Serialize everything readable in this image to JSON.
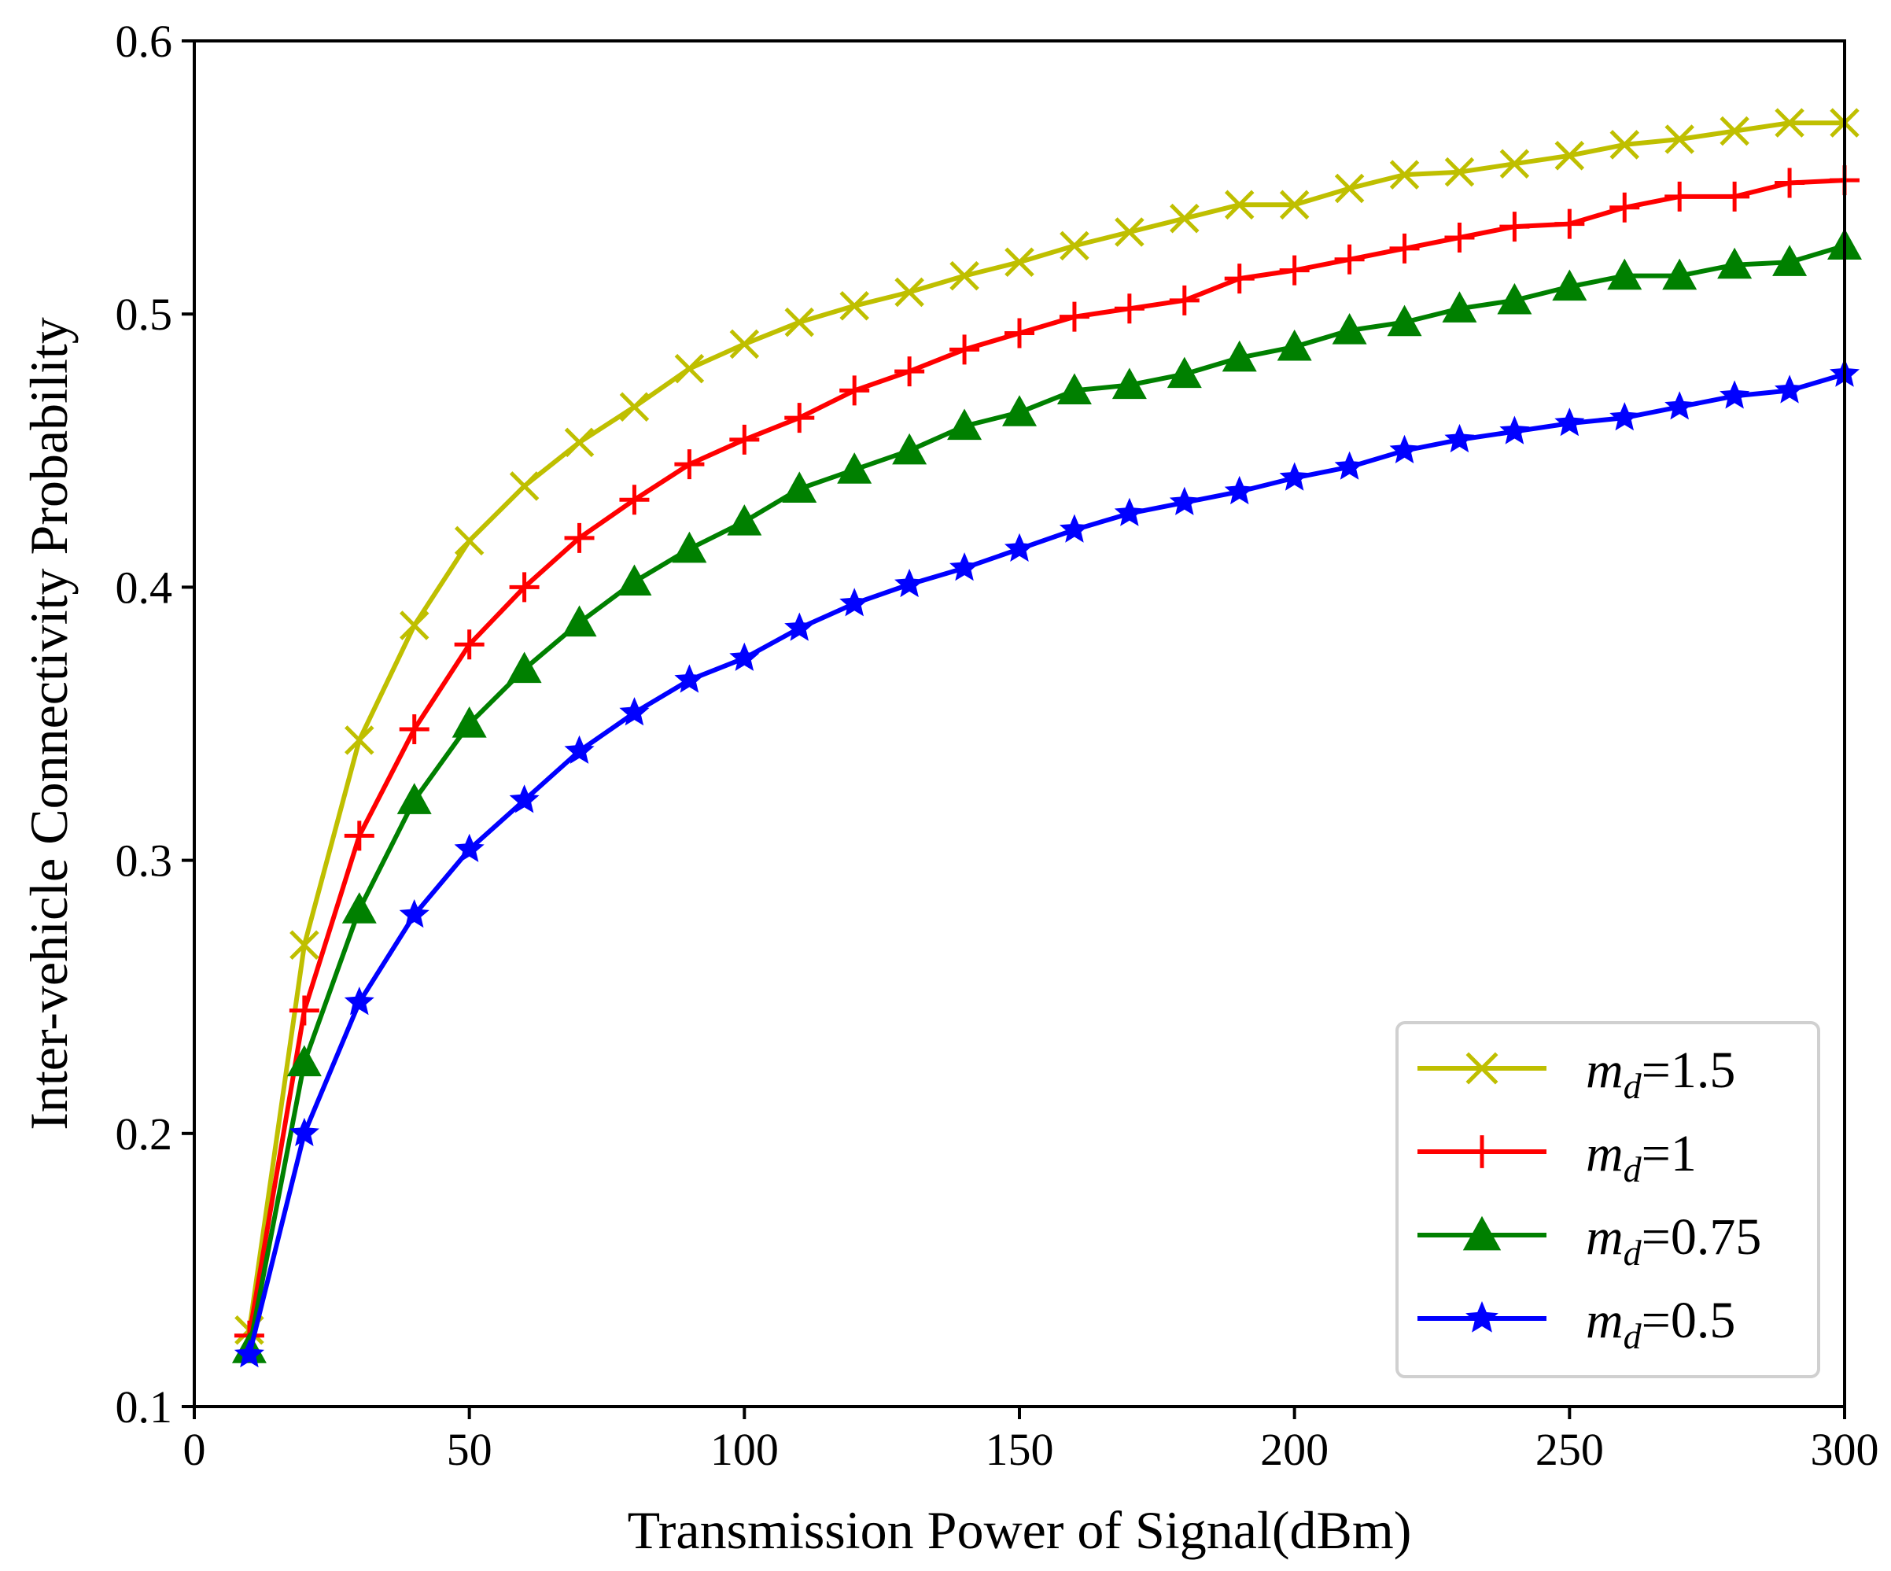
{
  "chart_data": {
    "type": "line",
    "title": "",
    "xlabel": "Transmission Power of Signal(dBm)",
    "ylabel": "Inter-vehicle Connectivity Probability",
    "xlim": [
      0,
      300
    ],
    "ylim": [
      0.1,
      0.6
    ],
    "xticks": [
      0,
      50,
      100,
      150,
      200,
      250,
      300
    ],
    "yticks": [
      0.1,
      0.2,
      0.3,
      0.4,
      0.5,
      0.6
    ],
    "xtick_labels": [
      "0",
      "50",
      "100",
      "150",
      "200",
      "250",
      "300"
    ],
    "ytick_labels": [
      "0.1",
      "0.2",
      "0.3",
      "0.4",
      "0.5",
      "0.6"
    ],
    "grid": false,
    "legend_position": "lower-right",
    "x": [
      10,
      20,
      30,
      40,
      50,
      60,
      70,
      80,
      90,
      100,
      110,
      120,
      130,
      140,
      150,
      160,
      170,
      180,
      190,
      200,
      210,
      220,
      230,
      240,
      250,
      260,
      270,
      280,
      290,
      300
    ],
    "series": [
      {
        "name": "m_d=1.5",
        "legend_var": "m",
        "legend_sub": "d",
        "legend_value": "=1.5",
        "color": "#bfbf00",
        "marker": "x",
        "values": [
          0.128,
          0.269,
          0.344,
          0.386,
          0.417,
          0.437,
          0.453,
          0.466,
          0.48,
          0.489,
          0.497,
          0.503,
          0.508,
          0.514,
          0.519,
          0.525,
          0.53,
          0.535,
          0.54,
          0.54,
          0.546,
          0.551,
          0.552,
          0.555,
          0.558,
          0.562,
          0.564,
          0.567,
          0.57,
          0.57
        ]
      },
      {
        "name": "m_d=1",
        "legend_var": "m",
        "legend_sub": "d",
        "legend_value": "=1",
        "color": "#ff0000",
        "marker": "+",
        "values": [
          0.126,
          0.245,
          0.309,
          0.348,
          0.379,
          0.4,
          0.418,
          0.432,
          0.445,
          0.454,
          0.462,
          0.472,
          0.479,
          0.487,
          0.493,
          0.499,
          0.502,
          0.505,
          0.513,
          0.516,
          0.52,
          0.524,
          0.528,
          0.532,
          0.533,
          0.539,
          0.543,
          0.543,
          0.548,
          0.549
        ]
      },
      {
        "name": "m_d=0.75",
        "legend_var": "m",
        "legend_sub": "d",
        "legend_value": "=0.75",
        "color": "#008000",
        "marker": "triangle",
        "values": [
          0.121,
          0.226,
          0.282,
          0.322,
          0.35,
          0.37,
          0.387,
          0.402,
          0.414,
          0.424,
          0.436,
          0.443,
          0.45,
          0.459,
          0.464,
          0.472,
          0.474,
          0.478,
          0.484,
          0.488,
          0.494,
          0.497,
          0.502,
          0.505,
          0.51,
          0.514,
          0.514,
          0.518,
          0.519,
          0.525
        ]
      },
      {
        "name": "m_d=0.5",
        "legend_var": "m",
        "legend_sub": "d",
        "legend_value": "=0.5",
        "color": "#0000ff",
        "marker": "star",
        "values": [
          0.119,
          0.2,
          0.248,
          0.28,
          0.304,
          0.322,
          0.34,
          0.354,
          0.366,
          0.374,
          0.385,
          0.394,
          0.401,
          0.407,
          0.414,
          0.421,
          0.427,
          0.431,
          0.435,
          0.44,
          0.444,
          0.45,
          0.454,
          0.457,
          0.46,
          0.462,
          0.466,
          0.47,
          0.472,
          0.478
        ]
      }
    ]
  }
}
